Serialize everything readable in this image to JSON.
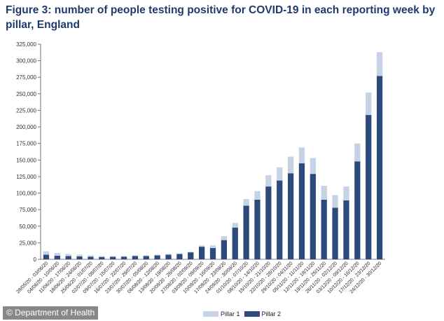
{
  "title": "Figure 3: number of people testing positive for COVID-19 in each reporting week by pillar, England",
  "credit": "© Department of Health",
  "colors": {
    "pillar1": "#c5d3e5",
    "pillar2": "#2d4a7c",
    "axis": "#555555",
    "title": "#1f3a6b"
  },
  "chart_data": {
    "type": "bar",
    "stacked": true,
    "title": "Figure 3: number of people testing positive for COVID-19 in each reporting week by pillar, England",
    "xlabel": "",
    "ylabel": "",
    "ylim": [
      0,
      325000
    ],
    "yticks": [
      0,
      25000,
      50000,
      75000,
      100000,
      125000,
      150000,
      175000,
      200000,
      225000,
      250000,
      275000,
      300000,
      325000
    ],
    "ytick_labels": [
      "0",
      "25,000",
      "50,000",
      "75,000",
      "100,000",
      "125,000",
      "150,000",
      "175,000",
      "200,000",
      "225,000",
      "250,000",
      "275,000",
      "300,000",
      "325,000"
    ],
    "legend_position": "bottom",
    "categories": [
      "28/05/20 - 03/06/20",
      "04/06/20 - 10/06/20",
      "11/06/20 - 17/06/20",
      "18/06/20 - 24/06/20",
      "25/06/20 - 01/07/20",
      "02/07/20 - 08/07/20",
      "09/07/20 - 15/07/20",
      "16/07/20 - 22/07/20",
      "23/07/20 - 29/07/20",
      "30/07/20 - 05/08/20",
      "06/08/20 - 12/08/20",
      "13/08/20 - 19/08/20",
      "20/08/20 - 26/08/20",
      "27/08/20 - 02/09/20",
      "03/09/20 - 09/09/20",
      "10/09/20 - 16/09/20",
      "17/09/20 - 23/09/20",
      "24/09/20 - 30/09/20",
      "01/10/20 - 07/10/20",
      "08/10/20 - 14/10/20",
      "15/10/20 - 21/10/20",
      "22/10/20 - 28/10/20",
      "29/10/20 - 04/11/20",
      "05/11/20 - 11/11/20",
      "12/11/20 - 18/11/20",
      "19/11/20 - 25/11/20",
      "26/11/20 - 02/12/20",
      "03/12/20 - 09/12/20",
      "10/12/20 - 16/12/20",
      "17/12/20 - 23/12/20",
      "24/12/20 - 30/12/20"
    ],
    "series": [
      {
        "name": "Pillar 1",
        "values": [
          5000,
          4000,
          3000,
          2500,
          2000,
          1500,
          1200,
          1000,
          1000,
          1000,
          1000,
          1000,
          1000,
          1000,
          2000,
          4000,
          6000,
          7000,
          10000,
          13000,
          17000,
          20000,
          25000,
          24000,
          24000,
          21000,
          19000,
          21000,
          27000,
          34000,
          36000
        ]
      },
      {
        "name": "Pillar 2",
        "values": [
          7000,
          5500,
          5000,
          4500,
          4000,
          3500,
          3800,
          4000,
          5000,
          5000,
          6000,
          7000,
          8000,
          10500,
          19000,
          17000,
          29000,
          48000,
          81000,
          90000,
          110000,
          119000,
          130000,
          145000,
          129000,
          90000,
          78000,
          89000,
          148000,
          218000,
          277000
        ]
      }
    ]
  }
}
